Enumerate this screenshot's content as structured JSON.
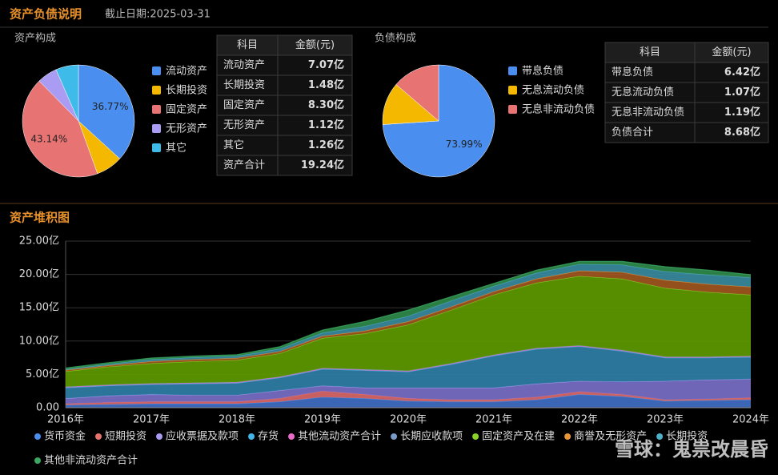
{
  "header": {
    "title": "资产负债说明",
    "date": "截止日期:2025-03-31"
  },
  "chart_data": [
    {
      "type": "pie",
      "title": "资产构成",
      "categories": [
        "流动资产",
        "长期投资",
        "固定资产",
        "无形资产",
        "其它"
      ],
      "values": [
        36.77,
        7.69,
        43.14,
        5.82,
        6.55
      ],
      "value_labels": [
        "36.77%",
        null,
        "43.14%",
        null,
        null
      ],
      "colors": [
        "#4a8ff0",
        "#f5b800",
        "#e87373",
        "#a99cf2",
        "#3fbbea"
      ]
    },
    {
      "type": "pie",
      "title": "负债构成",
      "categories": [
        "带息负债",
        "无息流动负债",
        "无息非流动负债"
      ],
      "values": [
        73.99,
        12.33,
        13.71
      ],
      "value_labels": [
        "73.99%",
        null,
        null
      ],
      "colors": [
        "#4a8ff0",
        "#f5b800",
        "#e87373"
      ]
    },
    {
      "type": "area",
      "title": "资产堆积图",
      "categories": [
        "2016年",
        null,
        "2017年",
        null,
        "2018年",
        null,
        "2019年",
        null,
        "2020年",
        null,
        "2021年",
        null,
        "2022年",
        null,
        "2023年",
        null,
        "2024年"
      ],
      "ylim": [
        0,
        25
      ],
      "yticks": [
        {
          "value": 0,
          "label": "0.00"
        },
        {
          "value": 5,
          "label": "5.00亿"
        },
        {
          "value": 10,
          "label": "10.00亿"
        },
        {
          "value": 15,
          "label": "15.00亿"
        },
        {
          "value": 20,
          "label": "20.00亿"
        },
        {
          "value": 25,
          "label": "25.00亿"
        }
      ],
      "grid": true,
      "series": [
        {
          "name": "货币资金",
          "color": "#3f6fc4",
          "values": [
            0.4,
            0.5,
            0.6,
            0.6,
            0.6,
            0.9,
            1.6,
            1.4,
            1.0,
            0.9,
            0.9,
            1.2,
            2.0,
            1.7,
            1.0,
            1.1,
            1.2
          ]
        },
        {
          "name": "短期投资",
          "color": "#d9686a",
          "values": [
            0.2,
            0.3,
            0.3,
            0.3,
            0.3,
            0.5,
            0.9,
            0.6,
            0.4,
            0.3,
            0.3,
            0.4,
            0.4,
            0.3,
            0.2,
            0.2,
            0.3
          ]
        },
        {
          "name": "应收票据及款项",
          "color": "#7a6fc8",
          "values": [
            0.8,
            1.0,
            1.1,
            1.0,
            1.0,
            1.2,
            0.8,
            1.0,
            1.6,
            1.8,
            1.8,
            2.0,
            1.6,
            1.9,
            2.8,
            2.9,
            2.8
          ]
        },
        {
          "name": "存货",
          "color": "#2f7fa8",
          "values": [
            1.6,
            1.5,
            1.5,
            1.7,
            1.8,
            1.9,
            2.5,
            2.6,
            2.4,
            3.5,
            4.8,
            5.2,
            5.2,
            4.6,
            3.5,
            3.3,
            3.3
          ]
        },
        {
          "name": "其他流动资产合计",
          "color": "#d06cc0",
          "values": [
            0.1,
            0.1,
            0.1,
            0.1,
            0.1,
            0.1,
            0.1,
            0.1,
            0.1,
            0.1,
            0.1,
            0.1,
            0.1,
            0.1,
            0.1,
            0.1,
            0.1
          ]
        },
        {
          "name": "长期应收款项",
          "color": "#7a9ac8",
          "values": [
            0.05,
            0.05,
            0.05,
            0.05,
            0.05,
            0.05,
            0.05,
            0.05,
            0.05,
            0.05,
            0.05,
            0.05,
            0.05,
            0.05,
            0.05,
            0.05,
            0.05
          ]
        },
        {
          "name": "固定资产及在建",
          "color": "#5e9a00",
          "values": [
            2.3,
            2.7,
            3.0,
            3.2,
            3.3,
            3.5,
            4.5,
            5.4,
            6.9,
            8.0,
            9.0,
            9.8,
            10.4,
            10.7,
            10.3,
            9.7,
            9.2
          ]
        },
        {
          "name": "商誉及无形资产",
          "color": "#a0561e",
          "values": [
            0.2,
            0.2,
            0.3,
            0.3,
            0.3,
            0.3,
            0.3,
            0.4,
            0.5,
            0.5,
            0.5,
            0.6,
            0.8,
            1.0,
            1.2,
            1.2,
            1.2
          ]
        },
        {
          "name": "长期投资",
          "color": "#3a8aa0",
          "values": [
            0.1,
            0.2,
            0.3,
            0.3,
            0.3,
            0.4,
            0.5,
            0.7,
            0.8,
            0.9,
            0.8,
            0.9,
            1.0,
            1.1,
            1.3,
            1.4,
            1.4
          ]
        },
        {
          "name": "其他非流动资产合计",
          "color": "#2f8a4a",
          "values": [
            0.2,
            0.2,
            0.2,
            0.2,
            0.2,
            0.3,
            0.4,
            0.7,
            0.9,
            0.6,
            0.4,
            0.4,
            0.4,
            0.5,
            0.7,
            0.7,
            0.4
          ]
        }
      ],
      "legend_colors": [
        "#4a8ff0",
        "#e8736c",
        "#a89cf0",
        "#45b5e8",
        "#e86cc8",
        "#7a9ac8",
        "#8ad42a",
        "#e8953a",
        "#4fb0c8",
        "#3aa860"
      ]
    }
  ],
  "asset_table": {
    "header": [
      "科目",
      "金额(元)"
    ],
    "rows": [
      [
        "流动资产",
        "7.07亿"
      ],
      [
        "长期投资",
        "1.48亿"
      ],
      [
        "固定资产",
        "8.30亿"
      ],
      [
        "无形资产",
        "1.12亿"
      ],
      [
        "其它",
        "1.26亿"
      ],
      [
        "资产合计",
        "19.24亿"
      ]
    ]
  },
  "liability_table": {
    "header": [
      "科目",
      "金额(元)"
    ],
    "rows": [
      [
        "带息负债",
        "6.42亿"
      ],
      [
        "无息流动负债",
        "1.07亿"
      ],
      [
        "无息非流动负债",
        "1.19亿"
      ],
      [
        "负债合计",
        "8.68亿"
      ]
    ]
  },
  "watermark": "雪球：鬼祟改晨昏"
}
